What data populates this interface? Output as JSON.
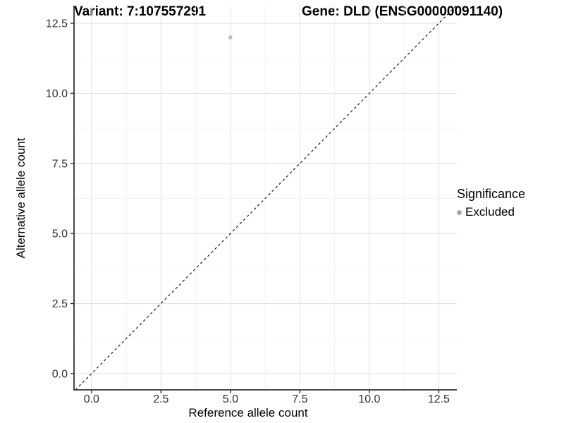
{
  "chart_data": {
    "type": "scatter",
    "title_left": "Variant: 7:107557291",
    "title_right": "Gene: DLD (ENSG00000091140)",
    "xlabel": "Reference allele count",
    "ylabel": "Alternative allele count",
    "xlim": [
      -0.63,
      13.15
    ],
    "ylim": [
      -0.58,
      13.13
    ],
    "x_ticks": [
      0,
      2.5,
      5,
      7.5,
      10,
      12.5
    ],
    "x_tick_labels": [
      "0.0",
      "2.5",
      "5.0",
      "7.5",
      "10.0",
      "12.5"
    ],
    "y_ticks": [
      0,
      2.5,
      5,
      7.5,
      10,
      12.5
    ],
    "y_tick_labels": [
      "0.0",
      "2.5",
      "5.0",
      "7.5",
      "10.0",
      "12.5"
    ],
    "x_minor_ticks": [
      1.25,
      3.75,
      6.25,
      8.75,
      11.25
    ],
    "y_minor_ticks": [
      1.25,
      3.75,
      6.25,
      8.75,
      11.25
    ],
    "grid": true,
    "points": [
      {
        "x": 5,
        "y": 12,
        "series": "Excluded"
      }
    ],
    "reference_line": {
      "kind": "identity",
      "style": "dashed"
    },
    "legend": {
      "title": "Significance",
      "position": "right",
      "items": [
        {
          "label": "Excluded",
          "color": "#a6a6a6"
        }
      ]
    }
  },
  "colors": {
    "background": "#ffffff",
    "grid_major": "#e3e3e3",
    "grid_minor": "#f0f0f0",
    "axis_line": "#333333",
    "tick_mark": "#333333",
    "tick_label": "#303030",
    "dashed_line": "#1a1a1a",
    "point": "#bdbdbd",
    "legend_dot": "#a6a6a6"
  }
}
